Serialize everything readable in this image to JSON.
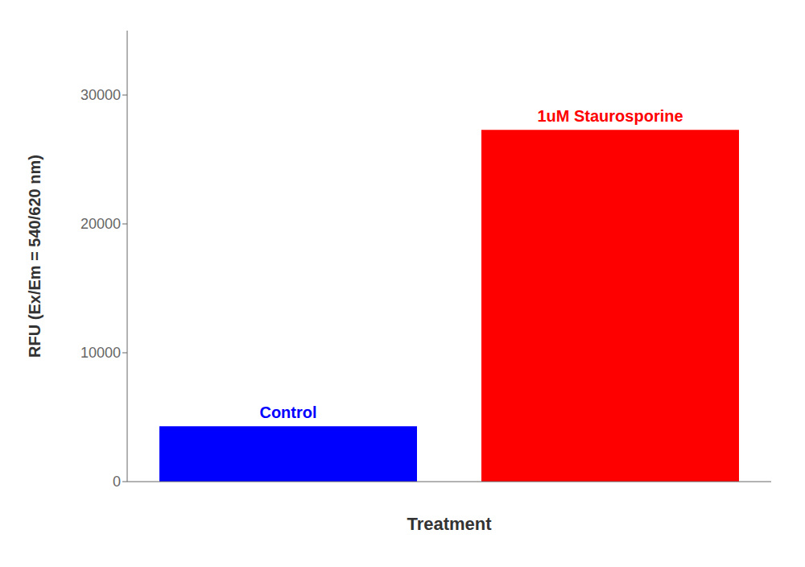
{
  "chart_data": {
    "type": "bar",
    "categories": [
      "Control",
      "1uM Staurosporine"
    ],
    "values": [
      4300,
      27300
    ],
    "colors": [
      "#0000FF",
      "#FF0000"
    ],
    "xlabel": "Treatment",
    "ylabel": "RFU (Ex/Em = 540/620 nm)",
    "ylim": [
      0,
      35000
    ],
    "yticks": [
      0,
      10000,
      20000,
      30000
    ],
    "annotations": [
      "Control",
      "1uM Staurosporine"
    ],
    "tick_labels": "y",
    "grid": false
  }
}
